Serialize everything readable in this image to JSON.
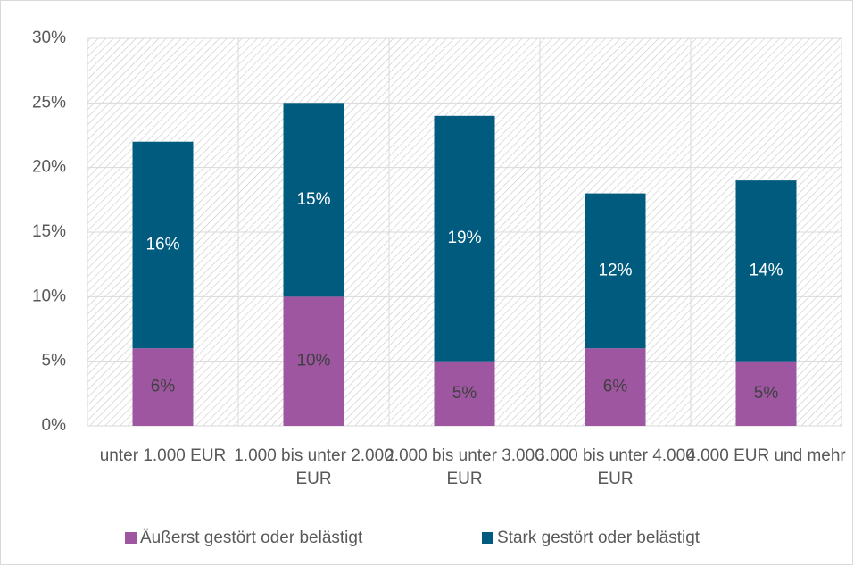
{
  "chart_data": {
    "type": "stacked_bar",
    "categories": [
      "unter 1.000 EUR",
      "1.000 bis unter 2.000 EUR",
      "2.000 bis unter 3.000 EUR",
      "3.000 bis unter 4.000 EUR",
      "4.000 EUR und mehr"
    ],
    "series": [
      {
        "name": "Äußerst gestört oder belästigt",
        "color": "#9e56a0",
        "values": [
          6,
          10,
          5,
          6,
          5
        ],
        "value_labels": [
          "6%",
          "10%",
          "5%",
          "6%",
          "5%"
        ]
      },
      {
        "name": "Stark gestört oder belästigt",
        "color": "#005b7f",
        "values": [
          16,
          15,
          19,
          12,
          14
        ],
        "value_labels": [
          "16%",
          "15%",
          "19%",
          "12%",
          "14%"
        ]
      }
    ],
    "ylim": [
      0,
      30
    ],
    "yticks": [
      {
        "value": 0,
        "label": "0%"
      },
      {
        "value": 5,
        "label": "5%"
      },
      {
        "value": 10,
        "label": "10%"
      },
      {
        "value": 15,
        "label": "15%"
      },
      {
        "value": 20,
        "label": "20%"
      },
      {
        "value": 25,
        "label": "25%"
      },
      {
        "value": 30,
        "label": "30%"
      }
    ],
    "grid": true,
    "legend": "bottom"
  }
}
